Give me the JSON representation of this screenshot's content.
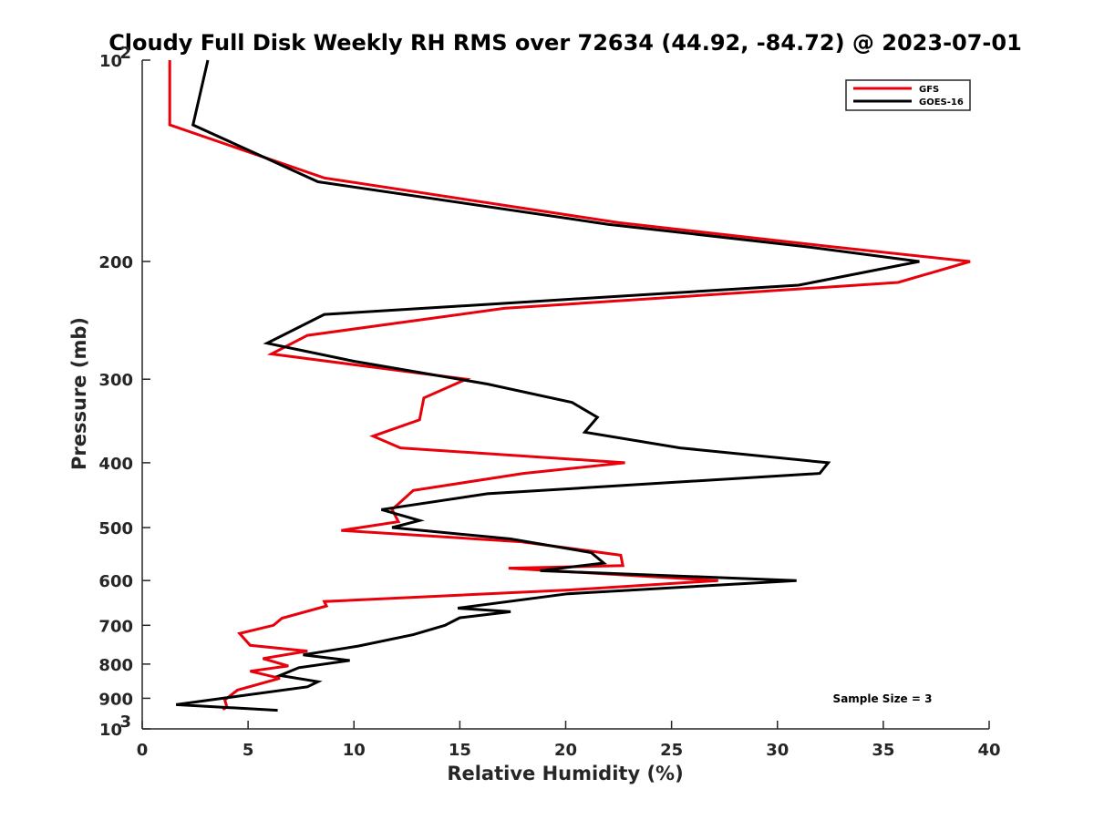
{
  "chart_data": {
    "type": "line",
    "title": "Cloudy Full Disk Weekly RH RMS over 72634 (44.92, -84.72) @ 2023-07-01",
    "xlabel": "Relative Humidity (%)",
    "ylabel": "Pressure (mb)",
    "xlim": [
      0,
      40
    ],
    "ylim": [
      100,
      1000
    ],
    "y_scale": "log",
    "y_reversed": true,
    "x_ticks": [
      "0",
      "5",
      "10",
      "15",
      "20",
      "25",
      "30",
      "35",
      "40"
    ],
    "y_ticks": [
      {
        "value": 100,
        "base": "10",
        "exp": "2"
      },
      {
        "value": 200,
        "label": "200"
      },
      {
        "value": 300,
        "label": "300"
      },
      {
        "value": 400,
        "label": "400"
      },
      {
        "value": 500,
        "label": "500"
      },
      {
        "value": 600,
        "label": "600"
      },
      {
        "value": 700,
        "label": "700"
      },
      {
        "value": 800,
        "label": "800"
      },
      {
        "value": 900,
        "label": "900"
      },
      {
        "value": 1000,
        "base": "10",
        "exp": "3"
      }
    ],
    "grid": false,
    "legend_position": "top-right",
    "annotation": "Sample Size = 3",
    "series": [
      {
        "name": "GFS",
        "color": "#e8000b",
        "points": [
          [
            1.3,
            100
          ],
          [
            1.3,
            125
          ],
          [
            8.6,
            150
          ],
          [
            22.5,
            175
          ],
          [
            32.5,
            190
          ],
          [
            39.1,
            200
          ],
          [
            35.7,
            215
          ],
          [
            17.1,
            235
          ],
          [
            7.8,
            258
          ],
          [
            6.1,
            275
          ],
          [
            15.3,
            300
          ],
          [
            13.3,
            320
          ],
          [
            13.1,
            345
          ],
          [
            10.9,
            365
          ],
          [
            12.2,
            380
          ],
          [
            22.8,
            400
          ],
          [
            18.0,
            415
          ],
          [
            12.8,
            440
          ],
          [
            11.8,
            470
          ],
          [
            12.1,
            490
          ],
          [
            9.4,
            505
          ],
          [
            17.9,
            525
          ],
          [
            22.6,
            550
          ],
          [
            22.7,
            570
          ],
          [
            17.3,
            575
          ],
          [
            27.2,
            600
          ],
          [
            20.1,
            620
          ],
          [
            8.6,
            645
          ],
          [
            8.7,
            655
          ],
          [
            6.6,
            683
          ],
          [
            6.2,
            700
          ],
          [
            4.6,
            720
          ],
          [
            5.1,
            750
          ],
          [
            7.8,
            765
          ],
          [
            5.7,
            785
          ],
          [
            6.9,
            805
          ],
          [
            5.1,
            820
          ],
          [
            6.5,
            840
          ],
          [
            4.5,
            875
          ],
          [
            3.9,
            905
          ],
          [
            4.0,
            928
          ],
          [
            3.8,
            935
          ]
        ]
      },
      {
        "name": "GOES-16",
        "color": "#000000",
        "points": [
          [
            3.1,
            100
          ],
          [
            2.4,
            125
          ],
          [
            8.3,
            152
          ],
          [
            22.0,
            176
          ],
          [
            31.3,
            190
          ],
          [
            36.7,
            200
          ],
          [
            31.0,
            217
          ],
          [
            8.6,
            240
          ],
          [
            5.9,
            265
          ],
          [
            10.0,
            282
          ],
          [
            16.3,
            305
          ],
          [
            20.3,
            325
          ],
          [
            21.5,
            342
          ],
          [
            20.9,
            360
          ],
          [
            25.4,
            380
          ],
          [
            32.4,
            400
          ],
          [
            32.0,
            415
          ],
          [
            16.3,
            445
          ],
          [
            11.3,
            470
          ],
          [
            13.1,
            488
          ],
          [
            11.8,
            500
          ],
          [
            17.4,
            520
          ],
          [
            21.2,
            545
          ],
          [
            21.8,
            565
          ],
          [
            18.8,
            580
          ],
          [
            30.9,
            600
          ],
          [
            20.1,
            628
          ],
          [
            14.9,
            660
          ],
          [
            17.4,
            668
          ],
          [
            15.0,
            682
          ],
          [
            14.3,
            700
          ],
          [
            12.8,
            723
          ],
          [
            10.2,
            752
          ],
          [
            7.6,
            775
          ],
          [
            9.8,
            790
          ],
          [
            7.4,
            810
          ],
          [
            6.5,
            832
          ],
          [
            8.3,
            850
          ],
          [
            7.8,
            865
          ],
          [
            3.8,
            900
          ],
          [
            1.6,
            920
          ],
          [
            6.4,
            938
          ]
        ]
      }
    ]
  }
}
